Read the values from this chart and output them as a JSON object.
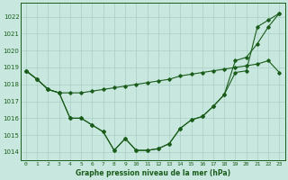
{
  "title": "Graphe pression niveau de la mer (hPa)",
  "bg_color": "#c8e8df",
  "grid_color": "#aacfc4",
  "line_color": "#1a5c1a",
  "marker_color": "#1a5c1a",
  "xlim": [
    -0.5,
    23.5
  ],
  "ylim": [
    1013.5,
    1022.8
  ],
  "yticks": [
    1014,
    1015,
    1016,
    1017,
    1018,
    1019,
    1020,
    1021,
    1022
  ],
  "xticks": [
    0,
    1,
    2,
    3,
    4,
    5,
    6,
    7,
    8,
    9,
    10,
    11,
    12,
    13,
    14,
    15,
    16,
    17,
    18,
    19,
    20,
    21,
    22,
    23
  ],
  "series1_x": [
    0,
    1,
    2,
    3,
    4,
    5,
    6,
    7,
    8,
    9,
    10,
    11,
    12,
    13,
    14,
    15,
    16,
    17,
    18,
    19,
    20,
    21,
    22,
    23
  ],
  "series1_y": [
    1018.8,
    1018.3,
    1017.7,
    1017.5,
    1017.5,
    1017.5,
    1017.6,
    1017.7,
    1017.8,
    1017.9,
    1018.0,
    1018.1,
    1018.2,
    1018.3,
    1018.5,
    1018.6,
    1018.7,
    1018.8,
    1018.9,
    1019.0,
    1019.1,
    1019.2,
    1019.4,
    1018.7
  ],
  "series2_x": [
    0,
    1,
    2,
    3,
    4,
    5,
    6,
    7,
    8,
    9,
    10,
    11,
    12,
    13,
    14,
    15,
    16,
    17,
    18,
    19,
    20,
    21,
    22,
    23
  ],
  "series2_y": [
    1018.8,
    1018.3,
    1017.7,
    1017.5,
    1016.0,
    1016.0,
    1015.6,
    1015.2,
    1014.1,
    1014.8,
    1014.1,
    1014.1,
    1014.2,
    1014.5,
    1015.4,
    1015.9,
    1016.1,
    1016.7,
    1017.4,
    1018.7,
    1018.8,
    1021.4,
    1021.8,
    1022.2
  ],
  "series3_x": [
    0,
    1,
    2,
    3,
    4,
    5,
    6,
    7,
    8,
    9,
    10,
    11,
    12,
    13,
    14,
    15,
    16,
    17,
    18,
    19,
    20,
    21,
    22,
    23
  ],
  "series3_y": [
    1018.8,
    1018.3,
    1017.7,
    1017.5,
    1016.0,
    1016.0,
    1015.6,
    1015.2,
    1014.1,
    1014.8,
    1014.1,
    1014.1,
    1014.2,
    1014.5,
    1015.4,
    1015.9,
    1016.1,
    1016.7,
    1017.4,
    1019.4,
    1019.6,
    1020.4,
    1021.4,
    1022.2
  ]
}
